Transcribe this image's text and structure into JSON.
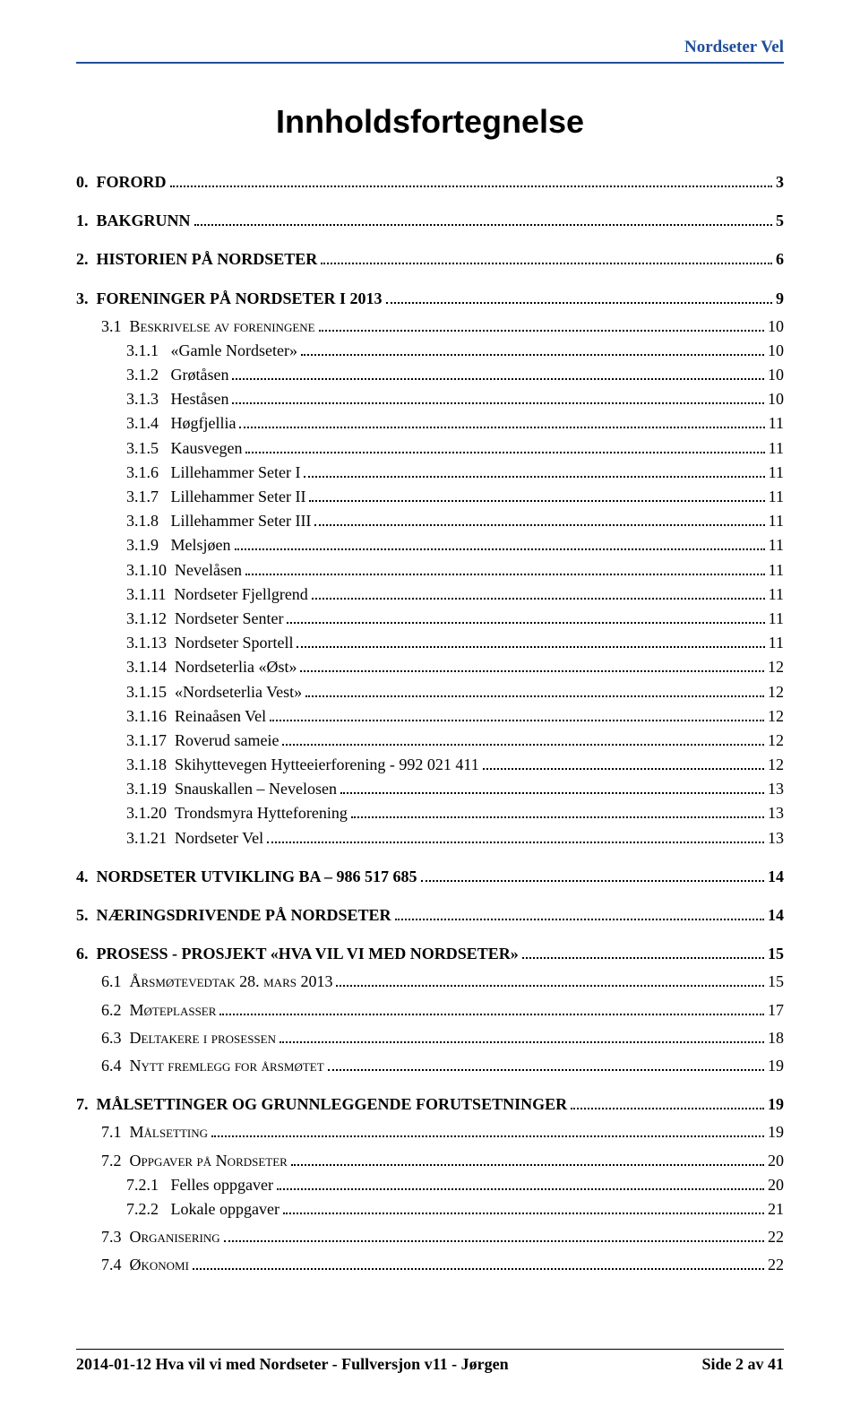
{
  "header": {
    "brand": "Nordseter Vel"
  },
  "title": "Innholdsfortegnelse",
  "toc": [
    {
      "level": 0,
      "num": "0.",
      "label": "FORORD",
      "page": "3"
    },
    {
      "level": 0,
      "num": "1.",
      "label": "BAKGRUNN",
      "page": "5"
    },
    {
      "level": 0,
      "num": "2.",
      "label": "HISTORIEN PÅ NORDSETER",
      "page": "6"
    },
    {
      "level": 0,
      "num": "3.",
      "label": "FORENINGER PÅ NORDSETER I 2013",
      "page": "9"
    },
    {
      "level": 1,
      "smallcaps": true,
      "num": "3.1",
      "label": "Beskrivelse av foreningene",
      "page": "10"
    },
    {
      "level": 2,
      "num": "3.1.1",
      "label": "«Gamle Nordseter»",
      "page": "10"
    },
    {
      "level": 2,
      "num": "3.1.2",
      "label": "Grøtåsen",
      "page": "10"
    },
    {
      "level": 2,
      "num": "3.1.3",
      "label": "Heståsen",
      "page": "10"
    },
    {
      "level": 2,
      "num": "3.1.4",
      "label": "Høgfjellia",
      "page": "11"
    },
    {
      "level": 2,
      "num": "3.1.5",
      "label": "Kausvegen",
      "page": "11"
    },
    {
      "level": 2,
      "num": "3.1.6",
      "label": "Lillehammer Seter I",
      "page": "11"
    },
    {
      "level": 2,
      "num": "3.1.7",
      "label": "Lillehammer Seter II",
      "page": "11"
    },
    {
      "level": 2,
      "num": "3.1.8",
      "label": "Lillehammer Seter III",
      "page": "11"
    },
    {
      "level": 2,
      "num": "3.1.9",
      "label": "Melsjøen",
      "page": "11"
    },
    {
      "level": 2,
      "num": "3.1.10",
      "label": "Nevelåsen",
      "page": "11"
    },
    {
      "level": 2,
      "num": "3.1.11",
      "label": "Nordseter Fjellgrend",
      "page": "11"
    },
    {
      "level": 2,
      "num": "3.1.12",
      "label": "Nordseter Senter",
      "page": "11"
    },
    {
      "level": 2,
      "num": "3.1.13",
      "label": "Nordseter Sportell",
      "page": "11"
    },
    {
      "level": 2,
      "num": "3.1.14",
      "label": "Nordseterlia «Øst»",
      "page": "12"
    },
    {
      "level": 2,
      "num": "3.1.15",
      "label": "«Nordseterlia Vest»",
      "page": "12"
    },
    {
      "level": 2,
      "num": "3.1.16",
      "label": "Reinaåsen Vel",
      "page": "12"
    },
    {
      "level": 2,
      "num": "3.1.17",
      "label": "Roverud sameie",
      "page": "12"
    },
    {
      "level": 2,
      "num": "3.1.18",
      "label": "Skihyttevegen Hytteeierforening - 992 021 411",
      "page": "12"
    },
    {
      "level": 2,
      "num": "3.1.19",
      "label": "Snauskallen – Nevelosen",
      "page": "13"
    },
    {
      "level": 2,
      "num": "3.1.20",
      "label": "Trondsmyra Hytteforening",
      "page": "13"
    },
    {
      "level": 2,
      "num": "3.1.21",
      "label": "Nordseter Vel",
      "page": "13"
    },
    {
      "level": 0,
      "num": "4.",
      "label": "NORDSETER UTVIKLING BA – 986 517 685",
      "page": "14"
    },
    {
      "level": 0,
      "num": "5.",
      "label": "NÆRINGSDRIVENDE PÅ NORDSETER",
      "page": "14"
    },
    {
      "level": 0,
      "num": "6.",
      "label": "PROSESS - PROSJEKT «HVA VIL VI MED NORDSETER»",
      "page": "15"
    },
    {
      "level": 1,
      "smallcaps": true,
      "num": "6.1",
      "label": "Årsmøtevedtak 28. mars 2013",
      "page": "15"
    },
    {
      "level": 1,
      "smallcaps": true,
      "num": "6.2",
      "label": "Møteplasser",
      "page": "17"
    },
    {
      "level": 1,
      "smallcaps": true,
      "num": "6.3",
      "label": "Deltakere i prosessen",
      "page": "18"
    },
    {
      "level": 1,
      "smallcaps": true,
      "num": "6.4",
      "label": "Nytt fremlegg for årsmøtet",
      "page": "19"
    },
    {
      "level": 0,
      "num": "7.",
      "label": "MÅLSETTINGER OG GRUNNLEGGENDE FORUTSETNINGER",
      "page": "19"
    },
    {
      "level": 1,
      "smallcaps": true,
      "num": "7.1",
      "label": "Målsetting",
      "page": "19"
    },
    {
      "level": 1,
      "smallcaps": true,
      "num": "7.2",
      "label": "Oppgaver på Nordseter",
      "page": "20"
    },
    {
      "level": 2,
      "num": "7.2.1",
      "label": "Felles oppgaver",
      "page": "20"
    },
    {
      "level": 2,
      "num": "7.2.2",
      "label": "Lokale oppgaver",
      "page": "21"
    },
    {
      "level": 1,
      "smallcaps": true,
      "num": "7.3",
      "label": "Organisering",
      "page": "22"
    },
    {
      "level": 1,
      "smallcaps": true,
      "num": "7.4",
      "label": "Økonomi",
      "page": "22"
    }
  ],
  "footer": {
    "left": "2014-01-12 Hva vil vi med Nordseter - Fullversjon v11 - Jørgen",
    "right": "Side 2 av 41"
  },
  "style": {
    "header_color": "#1f4e99",
    "text_color": "#000000",
    "background": "#ffffff"
  }
}
